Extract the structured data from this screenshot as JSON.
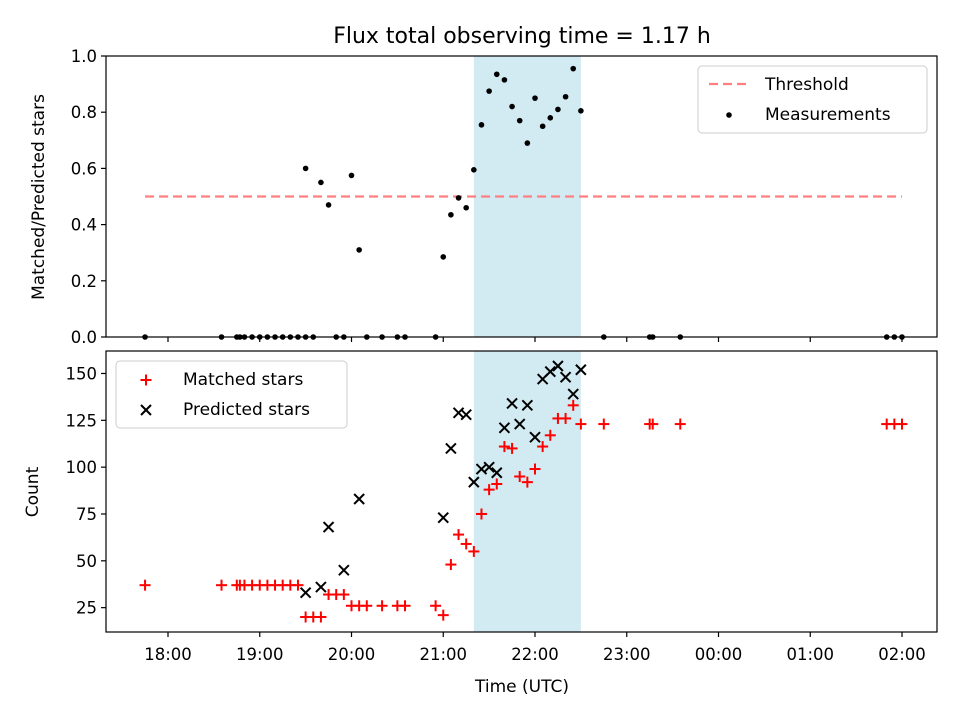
{
  "figure": {
    "title": "Flux total observing time = 1.17 h",
    "xlabel": "Time (UTC)",
    "x_ticks": [
      "18:00",
      "19:00",
      "20:00",
      "21:00",
      "22:00",
      "23:00",
      "00:00",
      "01:00",
      "02:00"
    ]
  },
  "chart_data": [
    {
      "type": "scatter",
      "ylabel": "Matched/Predicted stars",
      "ylim": [
        0.0,
        1.0
      ],
      "y_ticks": [
        "0.0",
        "0.2",
        "0.4",
        "0.6",
        "0.8",
        "1.0"
      ],
      "legend_position": "top-right",
      "shaded_span": {
        "x_start": "21:20",
        "x_end": "22:30",
        "color": "#add8e6"
      },
      "threshold": {
        "name": "Threshold",
        "y": 0.5,
        "x_start": "17:45",
        "x_end": "02:00",
        "color": "#ff7f7f",
        "style": "dashed"
      },
      "series": [
        {
          "name": "Measurements",
          "color": "#000000",
          "marker": "dot",
          "points": [
            [
              "17:45",
              0.0
            ],
            [
              "18:35",
              0.0
            ],
            [
              "18:45",
              0.0
            ],
            [
              "18:47",
              0.0
            ],
            [
              "18:50",
              0.0
            ],
            [
              "18:55",
              0.0
            ],
            [
              "19:00",
              0.0
            ],
            [
              "19:05",
              0.0
            ],
            [
              "19:10",
              0.0
            ],
            [
              "19:15",
              0.0
            ],
            [
              "19:20",
              0.0
            ],
            [
              "19:25",
              0.0
            ],
            [
              "19:30",
              0.0
            ],
            [
              "19:30",
              0.6
            ],
            [
              "19:35",
              0.0
            ],
            [
              "19:40",
              0.55
            ],
            [
              "19:45",
              0.47
            ],
            [
              "19:50",
              0.0
            ],
            [
              "19:55",
              0.0
            ],
            [
              "20:00",
              0.575
            ],
            [
              "20:05",
              0.31
            ],
            [
              "20:10",
              0.0
            ],
            [
              "20:20",
              0.0
            ],
            [
              "20:30",
              0.0
            ],
            [
              "20:35",
              0.0
            ],
            [
              "20:55",
              0.0
            ],
            [
              "21:00",
              0.285
            ],
            [
              "21:05",
              0.435
            ],
            [
              "21:10",
              0.495
            ],
            [
              "21:15",
              0.46
            ],
            [
              "21:20",
              0.595
            ],
            [
              "21:25",
              0.755
            ],
            [
              "21:30",
              0.875
            ],
            [
              "21:35",
              0.935
            ],
            [
              "21:40",
              0.915
            ],
            [
              "21:45",
              0.82
            ],
            [
              "21:50",
              0.77
            ],
            [
              "21:55",
              0.69
            ],
            [
              "22:00",
              0.85
            ],
            [
              "22:05",
              0.75
            ],
            [
              "22:10",
              0.78
            ],
            [
              "22:15",
              0.81
            ],
            [
              "22:20",
              0.855
            ],
            [
              "22:25",
              0.955
            ],
            [
              "22:30",
              0.805
            ],
            [
              "22:45",
              0.0
            ],
            [
              "23:15",
              0.0
            ],
            [
              "23:17",
              0.0
            ],
            [
              "23:35",
              0.0
            ],
            [
              "01:50",
              0.0
            ],
            [
              "01:55",
              0.0
            ],
            [
              "02:00",
              0.0
            ]
          ]
        }
      ]
    },
    {
      "type": "scatter",
      "ylabel": "Count",
      "ylim": [
        12,
        162
      ],
      "y_ticks": [
        "25",
        "50",
        "75",
        "100",
        "125",
        "150"
      ],
      "legend_position": "top-left",
      "shaded_span": {
        "x_start": "21:20",
        "x_end": "22:30",
        "color": "#add8e6"
      },
      "series": [
        {
          "name": "Matched stars",
          "color": "#ff0000",
          "marker": "plus",
          "points": [
            [
              "17:45",
              37
            ],
            [
              "18:35",
              37
            ],
            [
              "18:45",
              37
            ],
            [
              "18:47",
              37
            ],
            [
              "18:50",
              37
            ],
            [
              "18:55",
              37
            ],
            [
              "19:00",
              37
            ],
            [
              "19:05",
              37
            ],
            [
              "19:10",
              37
            ],
            [
              "19:15",
              37
            ],
            [
              "19:20",
              37
            ],
            [
              "19:25",
              37
            ],
            [
              "19:30",
              20
            ],
            [
              "19:35",
              20
            ],
            [
              "19:40",
              20
            ],
            [
              "19:45",
              32
            ],
            [
              "19:50",
              32
            ],
            [
              "19:55",
              32
            ],
            [
              "20:00",
              26
            ],
            [
              "20:05",
              26
            ],
            [
              "20:10",
              26
            ],
            [
              "20:20",
              26
            ],
            [
              "20:30",
              26
            ],
            [
              "20:35",
              26
            ],
            [
              "20:55",
              26
            ],
            [
              "21:00",
              21
            ],
            [
              "21:05",
              48
            ],
            [
              "21:10",
              64
            ],
            [
              "21:15",
              59
            ],
            [
              "21:20",
              55
            ],
            [
              "21:25",
              75
            ],
            [
              "21:30",
              88
            ],
            [
              "21:35",
              91
            ],
            [
              "21:40",
              111
            ],
            [
              "21:45",
              110
            ],
            [
              "21:50",
              95
            ],
            [
              "21:55",
              92
            ],
            [
              "22:00",
              99
            ],
            [
              "22:05",
              111
            ],
            [
              "22:10",
              117
            ],
            [
              "22:15",
              126
            ],
            [
              "22:20",
              126
            ],
            [
              "22:25",
              133
            ],
            [
              "22:30",
              123
            ],
            [
              "22:45",
              123
            ],
            [
              "23:15",
              123
            ],
            [
              "23:17",
              123
            ],
            [
              "23:35",
              123
            ],
            [
              "01:50",
              123
            ],
            [
              "01:55",
              123
            ],
            [
              "02:00",
              123
            ]
          ]
        },
        {
          "name": "Predicted stars",
          "color": "#000000",
          "marker": "x",
          "points": [
            [
              "19:30",
              33
            ],
            [
              "19:40",
              36
            ],
            [
              "19:45",
              68
            ],
            [
              "19:55",
              45
            ],
            [
              "20:05",
              83
            ],
            [
              "21:00",
              73
            ],
            [
              "21:05",
              110
            ],
            [
              "21:10",
              129
            ],
            [
              "21:15",
              128
            ],
            [
              "21:20",
              92
            ],
            [
              "21:25",
              99
            ],
            [
              "21:30",
              100
            ],
            [
              "21:35",
              97
            ],
            [
              "21:40",
              121
            ],
            [
              "21:45",
              134
            ],
            [
              "21:50",
              123
            ],
            [
              "21:55",
              133
            ],
            [
              "22:00",
              116
            ],
            [
              "22:05",
              147
            ],
            [
              "22:10",
              151
            ],
            [
              "22:15",
              154
            ],
            [
              "22:20",
              148
            ],
            [
              "22:25",
              139
            ],
            [
              "22:30",
              152
            ]
          ]
        }
      ]
    }
  ]
}
